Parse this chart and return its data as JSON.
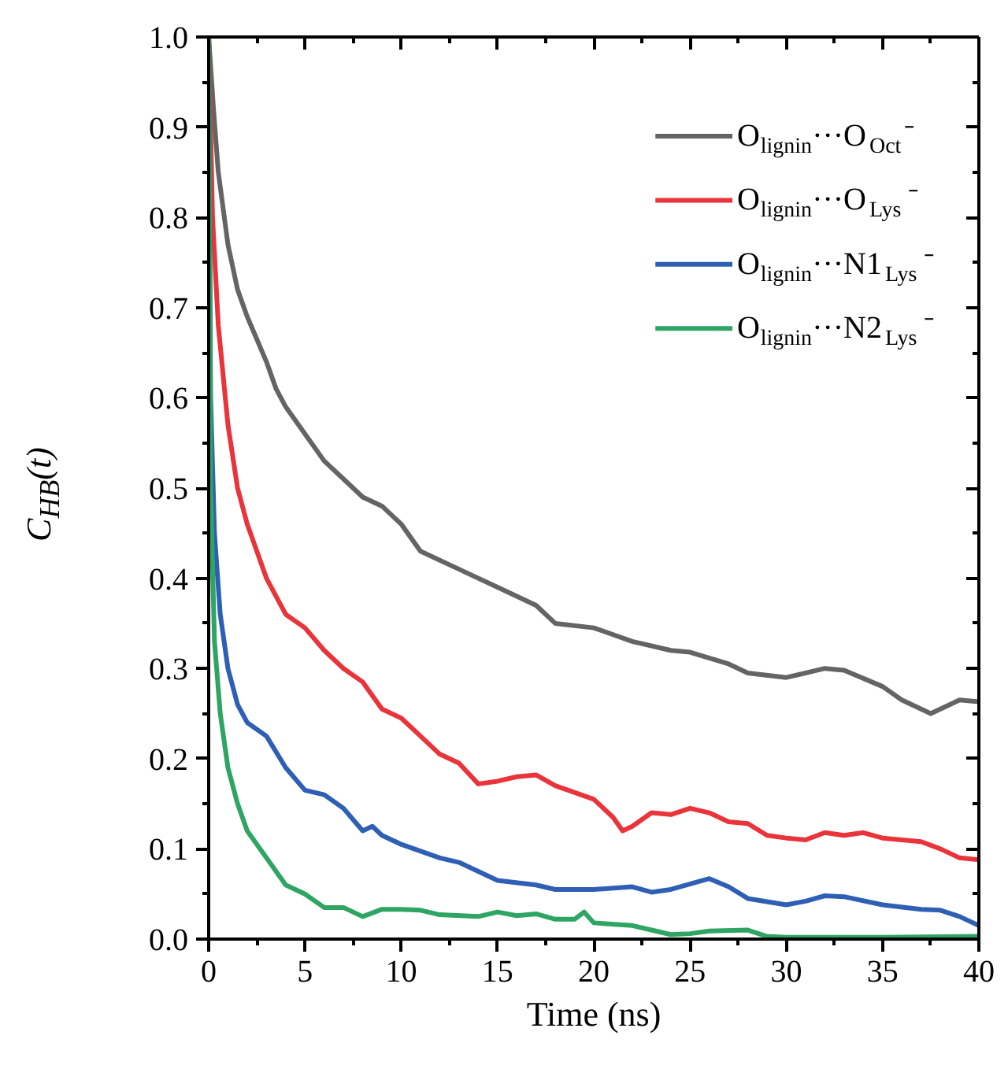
{
  "chart_data": {
    "type": "line",
    "xlabel": "Time (ns)",
    "ylabel": "C$_{HB}$(t)",
    "xlim": [
      0,
      40
    ],
    "ylim": [
      0,
      1.0
    ],
    "xticks": [
      0,
      5,
      10,
      15,
      20,
      25,
      30,
      35,
      40
    ],
    "yticks": [
      {
        "value": 0,
        "label": "0.0"
      },
      {
        "value": 0.1,
        "label": "0.1"
      },
      {
        "value": 0.2,
        "label": "0.2"
      },
      {
        "value": 0.3,
        "label": "0.3"
      },
      {
        "value": 0.4,
        "label": "0.4"
      },
      {
        "value": 0.5,
        "label": "0.5"
      },
      {
        "value": 0.6,
        "label": "0.6"
      },
      {
        "value": 0.7,
        "label": "0.7"
      },
      {
        "value": 0.8,
        "label": "0.8"
      },
      {
        "value": 0.9,
        "label": "0.9"
      },
      {
        "value": 1.0,
        "label": "1.0"
      }
    ],
    "grid": false,
    "legend": "top right",
    "marker": "none",
    "line_style": "solid",
    "series": [
      {
        "name": "O$_{lignin}$···O$_{Oct}$⁻",
        "color": "#646464",
        "x": [
          0,
          0.25,
          0.5,
          1,
          1.5,
          2,
          3,
          3.5,
          4,
          5,
          6,
          7,
          8,
          9,
          10,
          11,
          13,
          15,
          17,
          18,
          20,
          22,
          24,
          25,
          27,
          28,
          30,
          32,
          33,
          35,
          36,
          37.5,
          39,
          40
        ],
        "values": [
          1.0,
          0.92,
          0.85,
          0.77,
          0.72,
          0.69,
          0.64,
          0.61,
          0.59,
          0.56,
          0.53,
          0.51,
          0.49,
          0.48,
          0.46,
          0.43,
          0.41,
          0.39,
          0.37,
          0.35,
          0.345,
          0.33,
          0.32,
          0.318,
          0.305,
          0.295,
          0.29,
          0.3,
          0.298,
          0.28,
          0.265,
          0.25,
          0.265,
          0.263
        ]
      },
      {
        "name": "O$_{lignin}$···O$_{Lys}$⁻",
        "color": "#e8343a",
        "x": [
          0,
          0.2,
          0.5,
          1,
          1.5,
          2,
          3,
          4,
          5,
          6,
          7,
          8,
          9,
          10,
          11,
          12,
          13,
          14,
          15,
          16,
          17,
          18,
          20,
          21,
          21.5,
          22,
          23,
          24,
          25,
          26,
          27,
          28,
          29,
          30,
          31,
          32,
          33,
          34,
          35,
          36,
          37,
          38,
          39,
          40
        ],
        "values": [
          1.0,
          0.8,
          0.68,
          0.57,
          0.5,
          0.46,
          0.4,
          0.36,
          0.345,
          0.32,
          0.3,
          0.285,
          0.255,
          0.245,
          0.225,
          0.205,
          0.195,
          0.172,
          0.175,
          0.18,
          0.182,
          0.17,
          0.155,
          0.135,
          0.12,
          0.125,
          0.14,
          0.138,
          0.145,
          0.14,
          0.13,
          0.128,
          0.115,
          0.112,
          0.11,
          0.118,
          0.115,
          0.118,
          0.112,
          0.11,
          0.108,
          0.1,
          0.09,
          0.088
        ]
      },
      {
        "name": "O$_{lignin}$···N1$_{Lys}$⁻",
        "color": "#2f5fb4",
        "x": [
          0,
          0.1,
          0.3,
          0.6,
          1,
          1.5,
          2,
          3,
          4,
          5,
          6,
          7,
          8,
          8.5,
          9,
          10,
          12,
          13,
          14,
          15,
          17,
          18,
          20,
          22,
          23,
          24,
          26,
          27,
          28,
          30,
          31,
          32,
          33,
          35,
          37,
          38,
          39,
          40
        ],
        "values": [
          1.0,
          0.6,
          0.45,
          0.36,
          0.3,
          0.26,
          0.24,
          0.225,
          0.19,
          0.165,
          0.16,
          0.145,
          0.12,
          0.125,
          0.115,
          0.105,
          0.09,
          0.085,
          0.075,
          0.065,
          0.06,
          0.055,
          0.055,
          0.058,
          0.052,
          0.055,
          0.067,
          0.058,
          0.045,
          0.038,
          0.042,
          0.048,
          0.047,
          0.038,
          0.033,
          0.032,
          0.025,
          0.015
        ]
      },
      {
        "name": "O$_{lignin}$···N2$_{Lys}$⁻",
        "color": "#2ea563",
        "x": [
          0,
          0.1,
          0.3,
          0.6,
          1,
          1.5,
          2,
          3,
          4,
          5,
          6,
          7,
          8,
          9,
          10,
          11,
          12,
          14,
          15,
          16,
          17,
          18,
          19,
          19.5,
          20,
          22,
          23,
          24,
          25,
          26,
          28,
          29,
          30,
          35,
          40
        ],
        "values": [
          1.0,
          0.5,
          0.33,
          0.25,
          0.19,
          0.15,
          0.12,
          0.09,
          0.06,
          0.05,
          0.035,
          0.035,
          0.025,
          0.033,
          0.033,
          0.032,
          0.027,
          0.025,
          0.03,
          0.026,
          0.028,
          0.022,
          0.022,
          0.03,
          0.018,
          0.015,
          0.01,
          0.005,
          0.006,
          0.009,
          0.01,
          0.003,
          0.002,
          0.002,
          0.003
        ]
      }
    ]
  }
}
